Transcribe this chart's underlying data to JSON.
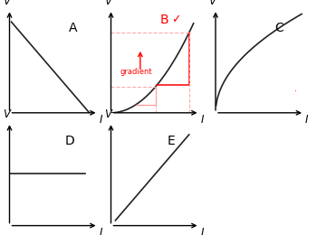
{
  "background_color": "#ffffff",
  "curve_color": "#222222",
  "red_color": "#ff0000",
  "red_light": "#ff9999",
  "label_fontsize": 10,
  "panels": {
    "A": [
      0.03,
      0.52,
      0.28,
      0.44
    ],
    "B": [
      0.35,
      0.52,
      0.28,
      0.44
    ],
    "C": [
      0.68,
      0.52,
      0.28,
      0.44
    ],
    "D": [
      0.03,
      0.04,
      0.28,
      0.44
    ],
    "E": [
      0.35,
      0.04,
      0.28,
      0.44
    ]
  }
}
